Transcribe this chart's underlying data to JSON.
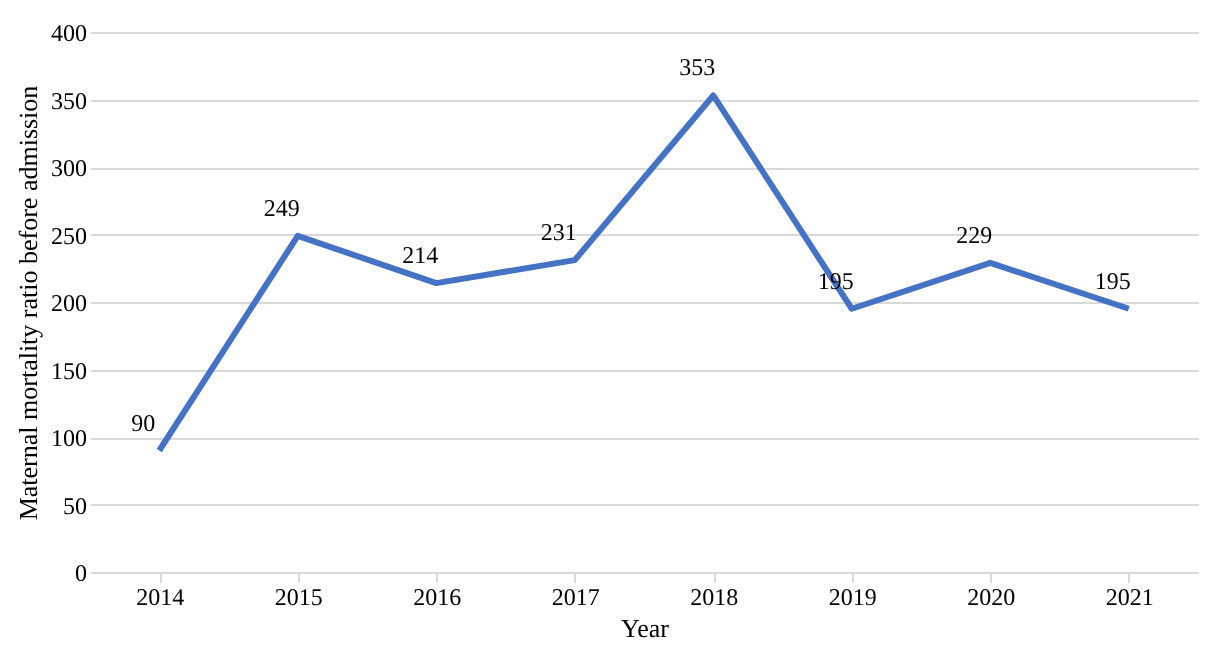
{
  "chart_data": {
    "type": "line",
    "xlabel": "Year",
    "ylabel": "Maternal mortality ratio before admission",
    "categories": [
      "2014",
      "2015",
      "2016",
      "2017",
      "2018",
      "2019",
      "2020",
      "2021"
    ],
    "series": [
      {
        "color": "#4472c4",
        "values": [
          90,
          249,
          214,
          231,
          353,
          195,
          229,
          195
        ]
      }
    ],
    "ylim": [
      0,
      400
    ],
    "yticks": [
      0,
      50,
      100,
      150,
      200,
      250,
      300,
      350,
      400
    ],
    "grid": "y",
    "data_labels": true,
    "marker": "none",
    "line_style": "solid",
    "legend": false
  }
}
